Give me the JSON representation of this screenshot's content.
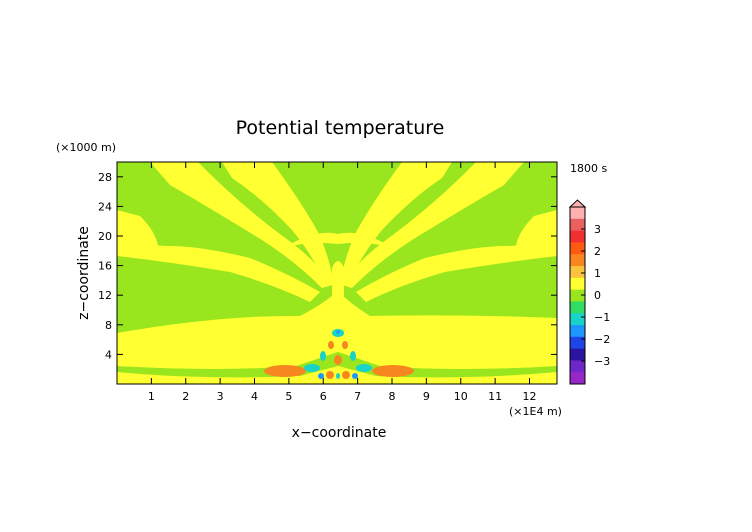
{
  "chart_data": {
    "type": "heatmap",
    "title": "Potential temperature",
    "time_label": "1800 s",
    "xlabel": "x−coordinate",
    "ylabel": "z−coordinate",
    "x_unit": "(×1E4 m)",
    "y_unit": "(×1000 m)",
    "xlim": [
      0,
      12.8
    ],
    "ylim": [
      0,
      30
    ],
    "x_ticks": [
      1,
      2,
      3,
      4,
      5,
      6,
      7,
      8,
      9,
      10,
      11,
      12
    ],
    "y_ticks": [
      4,
      8,
      12,
      16,
      20,
      24,
      28
    ],
    "colorbar": {
      "tick_labels": [
        "3",
        "2",
        "1",
        "0",
        "−1",
        "−2",
        "−3"
      ],
      "levels": [
        {
          "color": "#ffb0b0"
        },
        {
          "color": "#e86060"
        },
        {
          "color": "#f03030"
        },
        {
          "color": "#ff5a14"
        },
        {
          "color": "#f7861e"
        },
        {
          "color": "#fbc23c"
        },
        {
          "color": "#ffff32"
        },
        {
          "color": "#9ae61e"
        },
        {
          "color": "#32dc64"
        },
        {
          "color": "#19d2c8"
        },
        {
          "color": "#1e96ff"
        },
        {
          "color": "#1e46e6"
        },
        {
          "color": "#2d14a0"
        },
        {
          "color": "#6e28c8"
        },
        {
          "color": "#9628c8"
        }
      ]
    },
    "field_colors": {
      "positive_small": "#ffff32",
      "near_zero": "#9ae61e",
      "positive_mid": "#f7861e",
      "negative_small": "#19d2c8",
      "negative_mid": "#1e96ff"
    }
  }
}
